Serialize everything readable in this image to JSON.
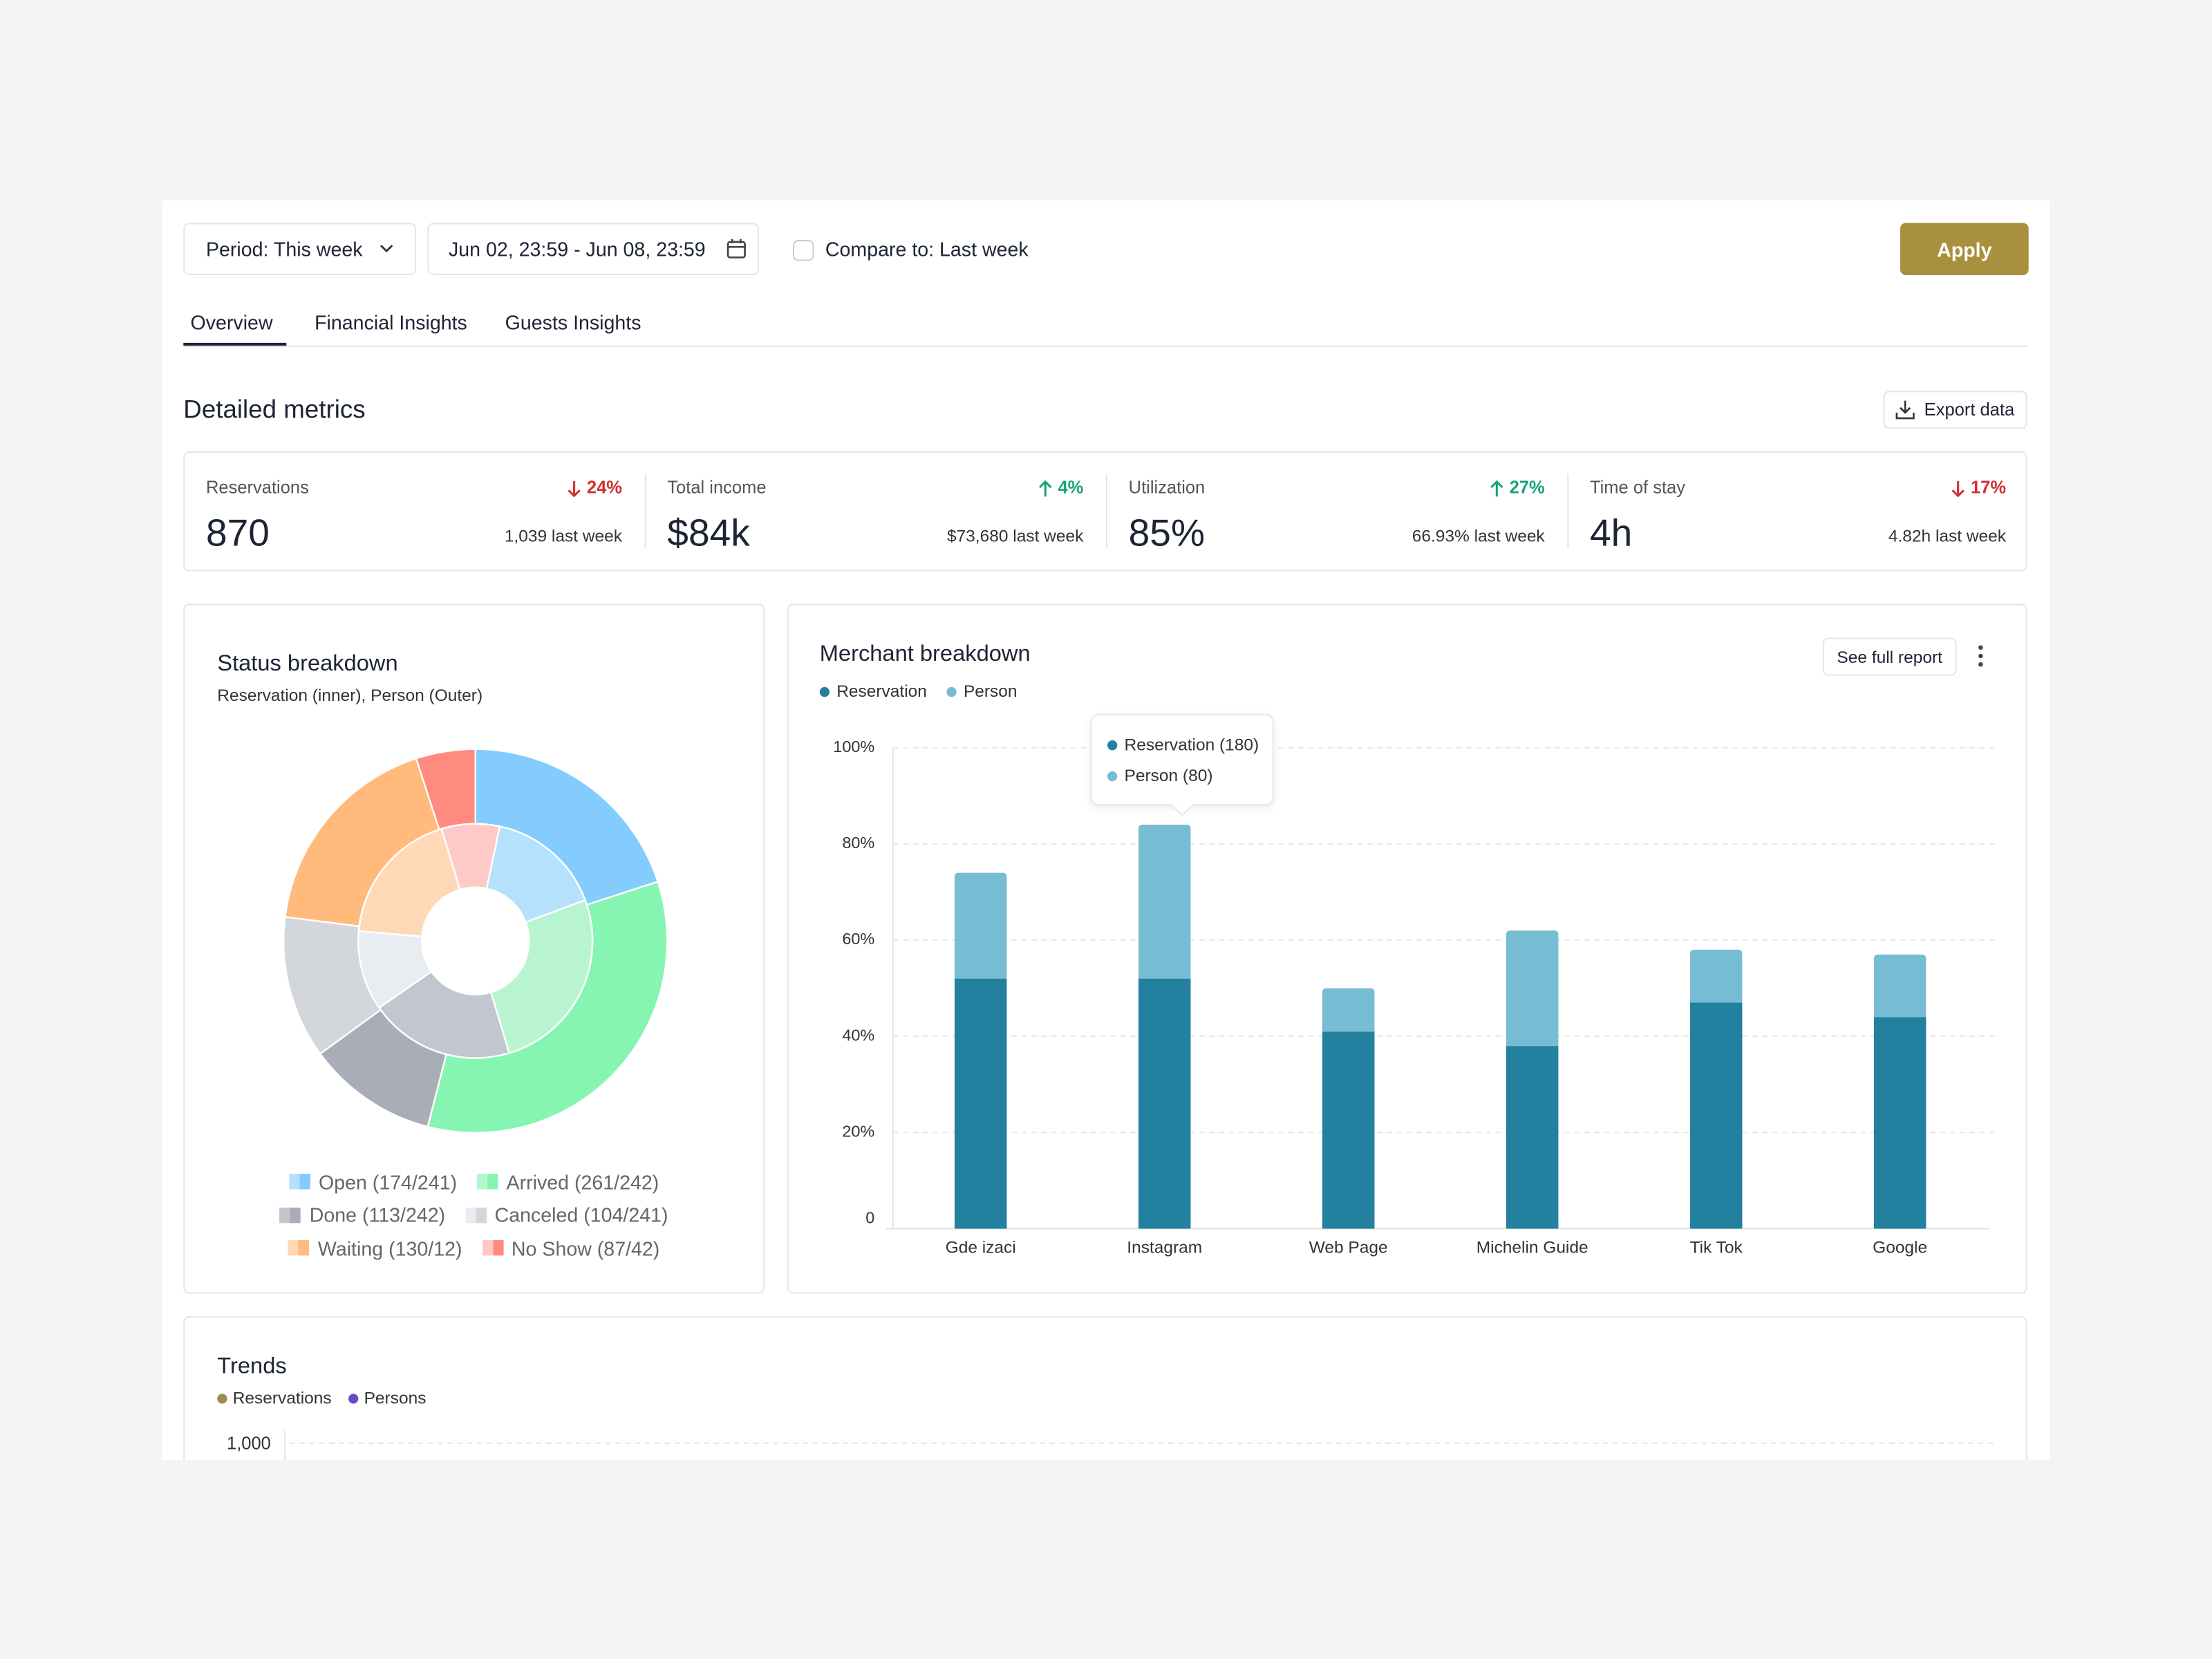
{
  "toolbar": {
    "period": "Period: This week",
    "date_range": "Jun 02, 23:59 - Jun 08, 23:59",
    "compare": "Compare to: Last week",
    "apply": "Apply"
  },
  "tabs": [
    "Overview",
    "Financial Insights",
    "Guests Insights"
  ],
  "section_title": "Detailed metrics",
  "export": "Export data",
  "metrics": [
    {
      "label": "Reservations",
      "change": "24%",
      "direction": "down",
      "change_color": "#d32f2f",
      "value": "870",
      "previous": "1,039 last week"
    },
    {
      "label": "Total income",
      "change": "4%",
      "direction": "up",
      "change_color": "#16a37c",
      "value": "$84k",
      "previous": "$73,680 last week"
    },
    {
      "label": "Utilization",
      "change": "27%",
      "direction": "up",
      "change_color": "#16a37c",
      "value": "85%",
      "previous": "66.93% last week"
    },
    {
      "label": "Time of stay",
      "change": "17%",
      "direction": "down",
      "change_color": "#d32f2f",
      "value": "4h",
      "previous": "4.82h last week"
    }
  ],
  "chart_data": [
    {
      "type": "pie",
      "title": "Status breakdown",
      "subtitle": "Reservation (inner), Person (Outer)",
      "categories": [
        "Open (174/241)",
        "Arrived (261/242)",
        "Done (113/242)",
        "Canceled (104/241)",
        "Waiting (130/12)",
        "No Show (87/42)"
      ],
      "inner": {
        "values": [
          16,
          26,
          20,
          11,
          19,
          8
        ],
        "colors": [
          "#b6e1fd",
          "#b9f4d0",
          "#c2c6ce",
          "#e9ecf0",
          "#ffd9b5",
          "#ffc9c7"
        ]
      },
      "outer": {
        "values": [
          20,
          34,
          11,
          12,
          18,
          5
        ],
        "colors": [
          "#83ccfd",
          "#86f5b1",
          "#a8adb7",
          "#d3d6db",
          "#ffba7c",
          "#ff8a80"
        ]
      }
    },
    {
      "type": "bar",
      "stacked": true,
      "title": "Merchant breakdown",
      "button": "See full report",
      "categories": [
        "Gde izaci",
        "Instagram",
        "Web Page",
        "Michelin Guide",
        "Tik Tok",
        "Google"
      ],
      "series": [
        {
          "name": "Reservation",
          "color": "#23809e",
          "values": [
            52,
            52,
            41,
            38,
            47,
            44
          ]
        },
        {
          "name": "Person",
          "color": "#76bdd4",
          "values": [
            22,
            32,
            9,
            24,
            11,
            13
          ]
        }
      ],
      "ylim": [
        0,
        100
      ],
      "yticks": [
        0,
        {
          "value": 20,
          "label": "20%"
        },
        {
          "value": 40,
          "label": "40%"
        },
        {
          "value": 60,
          "label": "60%"
        },
        {
          "value": 80,
          "label": "80%"
        },
        {
          "value": 100,
          "label": "100%"
        }
      ],
      "grid": true,
      "tooltip": [
        "Reservation (180)",
        "Person (80)"
      ]
    },
    {
      "type": "line",
      "title": "Trends",
      "series": [
        {
          "name": "Reservations",
          "color": "#a08a4a"
        },
        {
          "name": "Persons",
          "color": "#6a4bc4"
        }
      ],
      "yticks": [
        {
          "value": 1000,
          "label": "1,000"
        }
      ],
      "grid": true
    }
  ]
}
